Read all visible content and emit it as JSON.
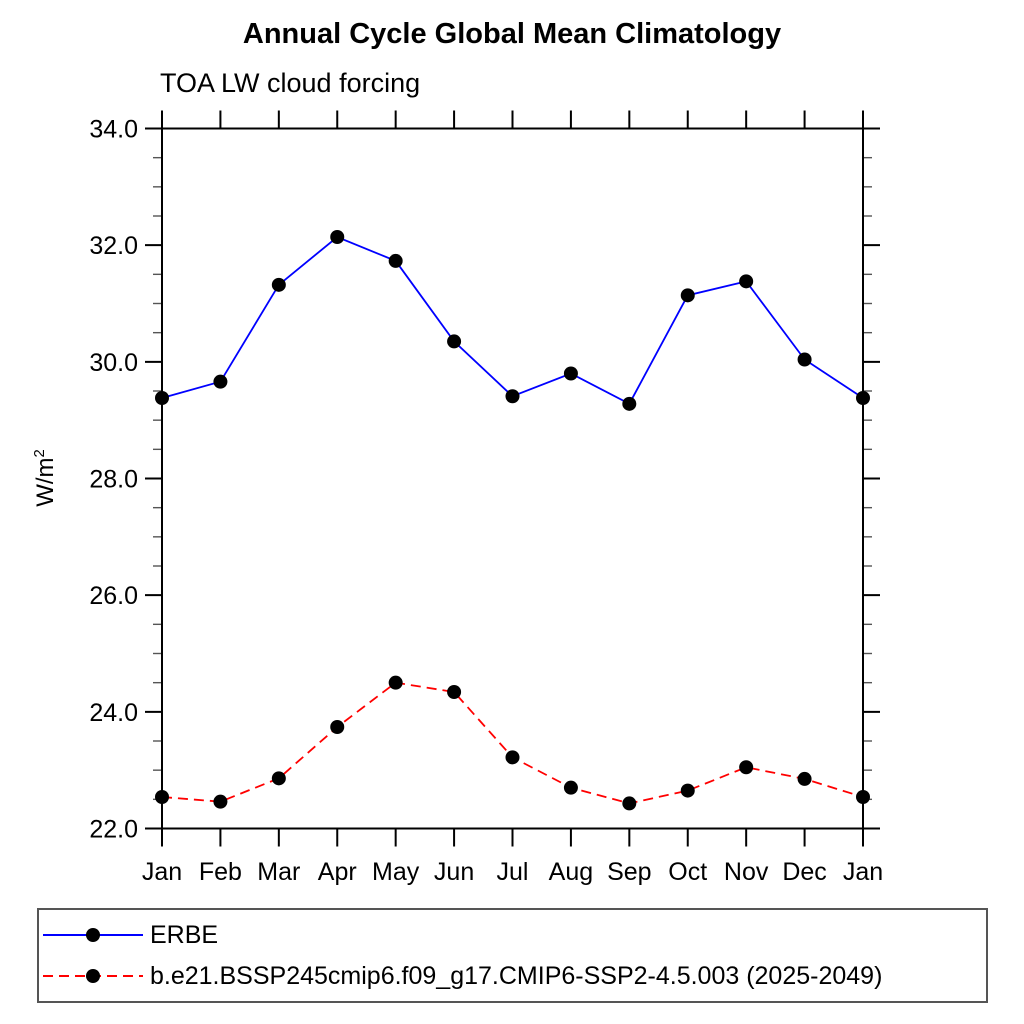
{
  "title": "Annual Cycle Global Mean Climatology",
  "subtitle": "TOA LW cloud forcing",
  "colors": {
    "axis": "#000000",
    "minor_tick": "#555555",
    "marker": "#000000",
    "erbe_line": "#0000ff",
    "model_line": "#ff0000",
    "legend_border": "#555555"
  },
  "chart_data": {
    "type": "line",
    "title": "Annual Cycle Global Mean Climatology",
    "subtitle": "TOA LW cloud forcing",
    "xlabel": "",
    "ylabel": "W/m²",
    "ylabel_base": "W/m",
    "ylabel_sup": "2",
    "categories": [
      "Jan",
      "Feb",
      "Mar",
      "Apr",
      "May",
      "Jun",
      "Jul",
      "Aug",
      "Sep",
      "Oct",
      "Nov",
      "Dec",
      "Jan"
    ],
    "ylim": [
      22.0,
      34.0
    ],
    "ytick_major": 2.0,
    "ytick_minor": 0.5,
    "ytick_label_format": "one-decimal",
    "grid": false,
    "legend_position": "bottom-left-box",
    "series": [
      {
        "name": "ERBE",
        "color": "#0000ff",
        "style": "solid",
        "dash": "",
        "marker": "filled-circle",
        "values": [
          29.38,
          29.66,
          31.32,
          32.14,
          31.73,
          30.35,
          29.41,
          29.8,
          29.28,
          31.14,
          31.38,
          30.04,
          29.38
        ]
      },
      {
        "name": "b.e21.BSSP245cmip6.f09_g17.CMIP6-SSP2-4.5.003 (2025-2049)",
        "color": "#ff0000",
        "style": "dashed",
        "dash": "10 6",
        "marker": "filled-circle",
        "values": [
          22.54,
          22.46,
          22.86,
          23.74,
          24.5,
          24.34,
          23.22,
          22.7,
          22.43,
          22.65,
          23.05,
          22.85,
          22.54
        ]
      }
    ]
  },
  "legend": {
    "entries": [
      {
        "label": "ERBE",
        "color": "#0000ff",
        "dash": ""
      },
      {
        "label": "b.e21.BSSP245cmip6.f09_g17.CMIP6-SSP2-4.5.003 (2025-2049)",
        "color": "#ff0000",
        "dash": "10 6"
      }
    ]
  }
}
